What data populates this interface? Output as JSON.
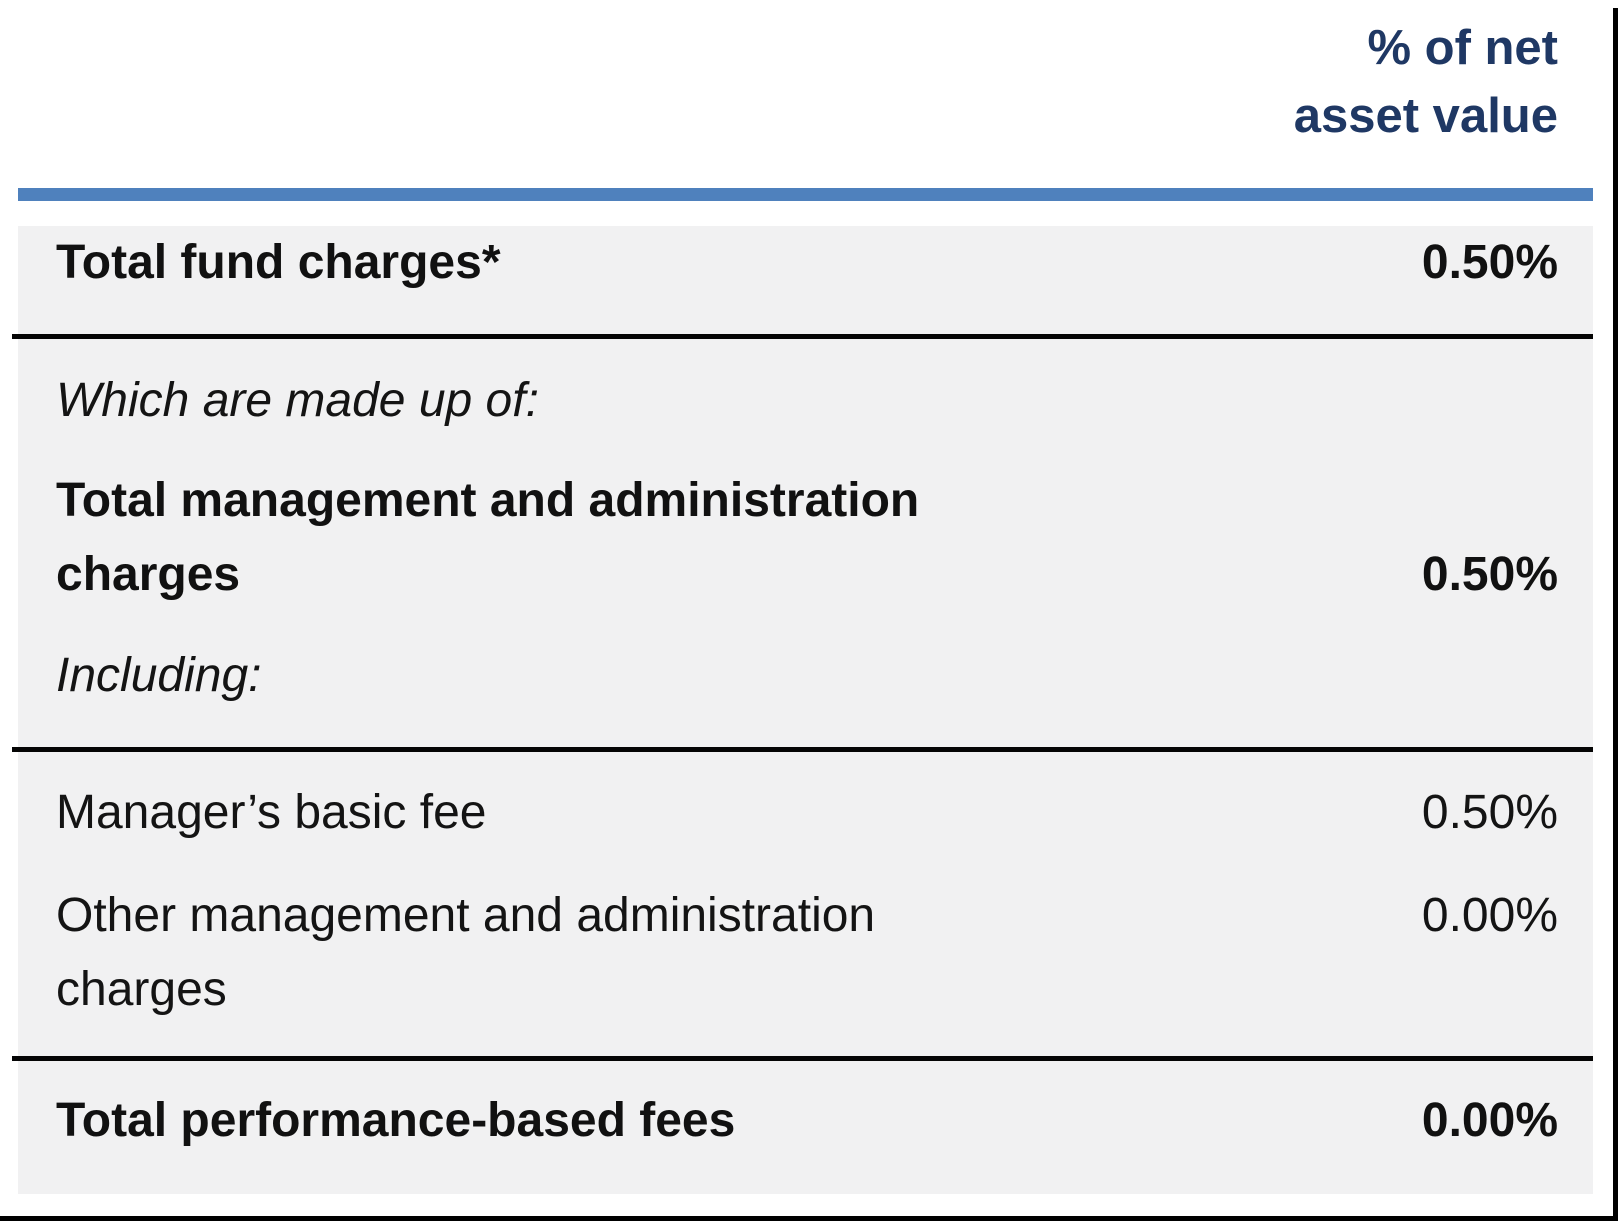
{
  "header": {
    "column_label": "% of net\nasset value"
  },
  "table": {
    "sections": [
      {
        "rows": [
          {
            "label": "Total fund charges*",
            "value": "0.50%"
          }
        ]
      },
      {
        "rows": [
          {
            "label": "Which are made up of:",
            "value": ""
          },
          {
            "label": "Total management and administration\ncharges",
            "value": "0.50%"
          },
          {
            "label": "Including:",
            "value": ""
          }
        ]
      },
      {
        "rows": [
          {
            "label": "Manager’s basic fee",
            "value": "0.50%"
          },
          {
            "label": "Other management and administration\ncharges",
            "value": "0.00%"
          }
        ]
      },
      {
        "rows": [
          {
            "label": "Total performance-based fees",
            "value": "0.00%"
          }
        ]
      }
    ]
  },
  "colors": {
    "accent_bar": "#4f81bd",
    "header_text": "#1f3864",
    "panel_background": "#f1f1f2",
    "divider": "#050505"
  }
}
